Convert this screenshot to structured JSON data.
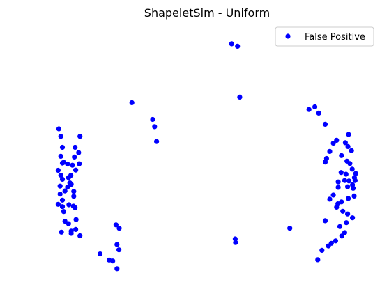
{
  "chart_data": {
    "type": "scatter",
    "title": "ShapeletSim - Uniform",
    "xlabel": "",
    "ylabel": "",
    "axes_visible": false,
    "grid": false,
    "legend": "top-right",
    "xlim": [
      0,
      1
    ],
    "ylim": [
      0,
      1
    ],
    "series": [
      {
        "name": "False Positive",
        "color": "#0000ff",
        "marker": "circle",
        "points": [
          [
            0.048,
            0.589
          ],
          [
            0.054,
            0.558
          ],
          [
            0.059,
            0.513
          ],
          [
            0.054,
            0.476
          ],
          [
            0.063,
            0.451
          ],
          [
            0.078,
            0.388
          ],
          [
            0.086,
            0.36
          ],
          [
            0.094,
            0.331
          ],
          [
            0.059,
            0.448
          ],
          [
            0.075,
            0.444
          ],
          [
            0.046,
            0.418
          ],
          [
            0.054,
            0.398
          ],
          [
            0.082,
            0.366
          ],
          [
            0.113,
            0.558
          ],
          [
            0.098,
            0.513
          ],
          [
            0.109,
            0.491
          ],
          [
            0.096,
            0.473
          ],
          [
            0.111,
            0.445
          ],
          [
            0.09,
            0.439
          ],
          [
            0.1,
            0.419
          ],
          [
            0.085,
            0.397
          ],
          [
            0.059,
            0.381
          ],
          [
            0.052,
            0.353
          ],
          [
            0.075,
            0.349
          ],
          [
            0.067,
            0.333
          ],
          [
            0.052,
            0.32
          ],
          [
            0.059,
            0.295
          ],
          [
            0.046,
            0.278
          ],
          [
            0.093,
            0.27
          ],
          [
            0.098,
            0.264
          ],
          [
            0.063,
            0.248
          ],
          [
            0.067,
            0.208
          ],
          [
            0.101,
            0.215
          ],
          [
            0.086,
            0.167
          ],
          [
            0.086,
            0.158
          ],
          [
            0.1,
            0.174
          ],
          [
            0.113,
            0.148
          ],
          [
            0.059,
            0.268
          ],
          [
            0.078,
            0.198
          ],
          [
            0.056,
            0.163
          ],
          [
            0.079,
            0.276
          ],
          [
            0.094,
            0.311
          ],
          [
            0.175,
            0.073
          ],
          [
            0.203,
            0.048
          ],
          [
            0.214,
            0.044
          ],
          [
            0.227,
            0.012
          ],
          [
            0.224,
            0.193
          ],
          [
            0.234,
            0.179
          ],
          [
            0.227,
            0.112
          ],
          [
            0.233,
            0.09
          ],
          [
            0.273,
            0.697
          ],
          [
            0.337,
            0.628
          ],
          [
            0.343,
            0.598
          ],
          [
            0.349,
            0.537
          ],
          [
            0.58,
            0.94
          ],
          [
            0.598,
            0.93
          ],
          [
            0.605,
            0.72
          ],
          [
            0.591,
            0.135
          ],
          [
            0.592,
            0.12
          ],
          [
            0.759,
            0.179
          ],
          [
            0.818,
            0.669
          ],
          [
            0.836,
            0.68
          ],
          [
            0.848,
            0.654
          ],
          [
            0.868,
            0.608
          ],
          [
            0.872,
            0.467
          ],
          [
            0.868,
            0.452
          ],
          [
            0.882,
            0.496
          ],
          [
            0.893,
            0.53
          ],
          [
            0.903,
            0.542
          ],
          [
            0.918,
            0.479
          ],
          [
            0.93,
            0.532
          ],
          [
            0.94,
            0.566
          ],
          [
            0.938,
            0.516
          ],
          [
            0.949,
            0.499
          ],
          [
            0.935,
            0.456
          ],
          [
            0.917,
            0.409
          ],
          [
            0.928,
            0.376
          ],
          [
            0.908,
            0.348
          ],
          [
            0.893,
            0.316
          ],
          [
            0.882,
            0.299
          ],
          [
            0.937,
            0.35
          ],
          [
            0.954,
            0.344
          ],
          [
            0.957,
            0.312
          ],
          [
            0.939,
            0.302
          ],
          [
            0.918,
            0.288
          ],
          [
            0.903,
            0.266
          ],
          [
            0.922,
            0.249
          ],
          [
            0.937,
            0.238
          ],
          [
            0.952,
            0.222
          ],
          [
            0.933,
            0.202
          ],
          [
            0.913,
            0.186
          ],
          [
            0.928,
            0.161
          ],
          [
            0.919,
            0.147
          ],
          [
            0.9,
            0.127
          ],
          [
            0.887,
            0.117
          ],
          [
            0.878,
            0.106
          ],
          [
            0.858,
            0.088
          ],
          [
            0.845,
            0.049
          ],
          [
            0.932,
            0.402
          ],
          [
            0.951,
            0.423
          ],
          [
            0.962,
            0.405
          ],
          [
            0.96,
            0.376
          ],
          [
            0.944,
            0.446
          ],
          [
            0.958,
            0.388
          ],
          [
            0.907,
            0.28
          ],
          [
            0.941,
            0.374
          ],
          [
            0.868,
            0.21
          ],
          [
            0.908,
            0.37
          ],
          [
            0.952,
            0.358
          ]
        ]
      }
    ]
  }
}
